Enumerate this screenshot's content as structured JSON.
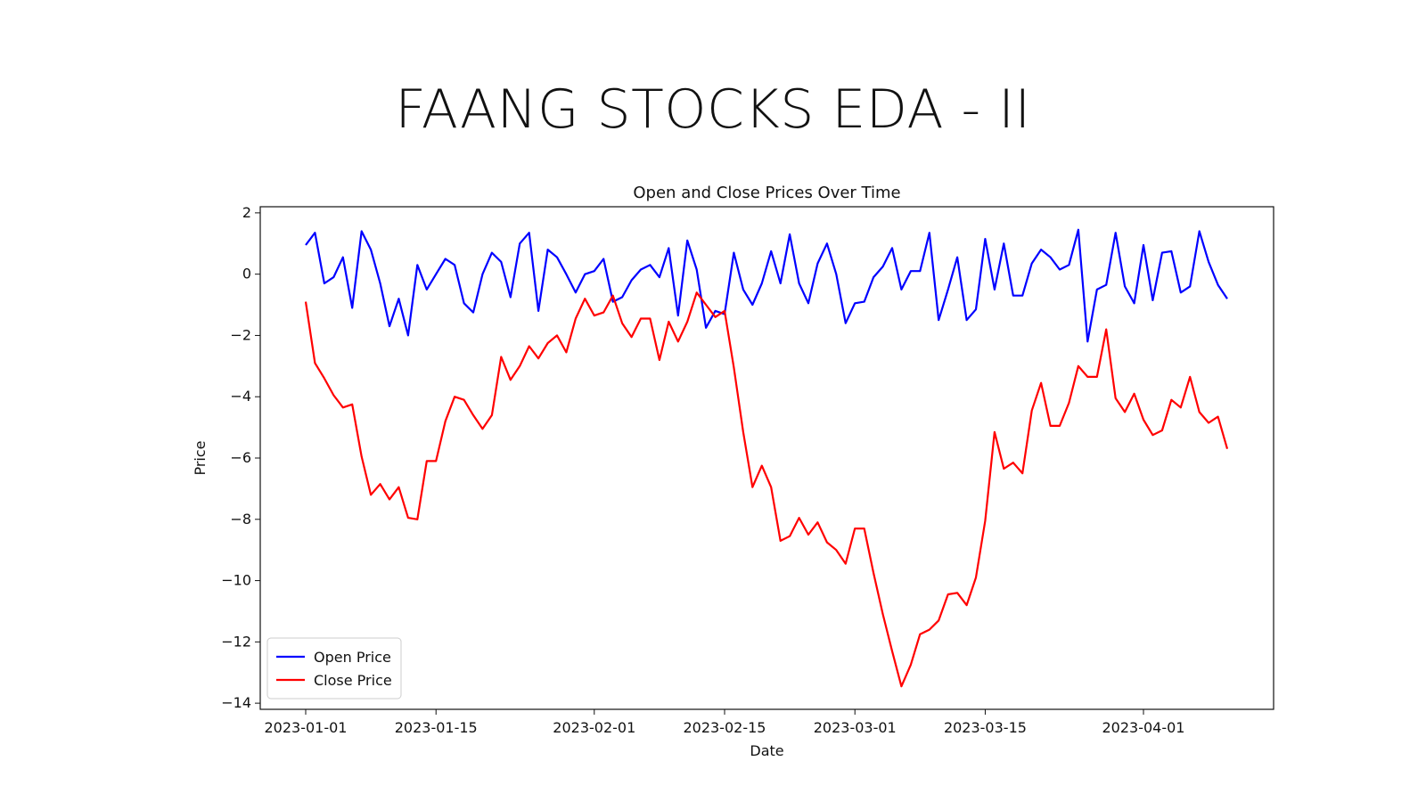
{
  "slide": {
    "title": "FAANG STOCKS EDA - II"
  },
  "chart_data": {
    "type": "line",
    "title": "Open and Close Prices Over Time",
    "xlabel": "Date",
    "ylabel": "Price",
    "x_start": "2023-01-01",
    "x_end": "2023-04-10",
    "xticks": [
      "2023-01-01",
      "2023-01-15",
      "2023-02-01",
      "2023-02-15",
      "2023-03-01",
      "2023-03-15",
      "2023-04-01"
    ],
    "yticks": [
      2,
      0,
      -2,
      -4,
      -6,
      -8,
      -10,
      -12,
      -14
    ],
    "ylim": [
      -14.2,
      2.2
    ],
    "grid": false,
    "legend_position": "lower-left",
    "series": [
      {
        "name": "Open Price",
        "color": "#0000ff",
        "values": [
          0.95,
          1.35,
          -0.3,
          -0.1,
          0.55,
          -1.1,
          1.4,
          0.8,
          -0.3,
          -1.7,
          -0.8,
          -2.0,
          0.3,
          -0.5,
          0.0,
          0.5,
          0.3,
          -0.95,
          -1.25,
          0.0,
          0.7,
          0.4,
          -0.75,
          1.0,
          1.35,
          -1.2,
          0.8,
          0.55,
          0.0,
          -0.6,
          0.0,
          0.1,
          0.5,
          -0.9,
          -0.75,
          -0.2,
          0.15,
          0.3,
          -0.1,
          0.85,
          -1.35,
          1.1,
          0.15,
          -1.75,
          -1.2,
          -1.3,
          0.7,
          -0.5,
          -1.0,
          -0.3,
          0.75,
          -0.3,
          1.3,
          -0.3,
          -0.95,
          0.35,
          1.0,
          0.0,
          -1.6,
          -0.95,
          -0.9,
          -0.1,
          0.25,
          0.85,
          -0.5,
          0.1,
          0.1,
          1.35,
          -1.5,
          -0.5,
          0.55,
          -1.5,
          -1.15,
          1.15,
          -0.5,
          1.0,
          -0.7,
          -0.7,
          0.35,
          0.8,
          0.55,
          0.15,
          0.3,
          1.45,
          -2.2,
          -0.5,
          -0.35,
          1.35,
          -0.4,
          -0.95,
          0.95,
          -0.85,
          0.7,
          0.75,
          -0.6,
          -0.4,
          1.4,
          0.4,
          -0.35,
          -0.8
        ]
      },
      {
        "name": "Close Price",
        "color": "#ff0000",
        "values": [
          -0.9,
          -2.9,
          -3.4,
          -3.95,
          -4.35,
          -4.25,
          -5.95,
          -7.2,
          -6.85,
          -7.35,
          -6.95,
          -7.95,
          -8.0,
          -6.1,
          -6.1,
          -4.8,
          -4.0,
          -4.1,
          -4.6,
          -5.05,
          -4.6,
          -2.7,
          -3.45,
          -3.0,
          -2.35,
          -2.75,
          -2.25,
          -2.0,
          -2.55,
          -1.45,
          -0.8,
          -1.35,
          -1.25,
          -0.7,
          -1.6,
          -2.05,
          -1.45,
          -1.45,
          -2.8,
          -1.55,
          -2.2,
          -1.55,
          -0.6,
          -1.0,
          -1.4,
          -1.2,
          -3.05,
          -5.15,
          -6.95,
          -6.25,
          -6.95,
          -8.7,
          -8.55,
          -7.95,
          -8.5,
          -8.1,
          -8.75,
          -9.0,
          -9.45,
          -8.3,
          -8.3,
          -9.75,
          -11.1,
          -12.3,
          -13.45,
          -12.75,
          -11.75,
          -11.6,
          -11.3,
          -10.45,
          -10.4,
          -10.8,
          -9.9,
          -8.05,
          -5.15,
          -6.35,
          -6.15,
          -6.5,
          -4.45,
          -3.55,
          -4.95,
          -4.95,
          -4.2,
          -3.0,
          -3.35,
          -3.35,
          -1.8,
          -4.05,
          -4.5,
          -3.9,
          -4.75,
          -5.25,
          -5.1,
          -4.1,
          -4.35,
          -3.35,
          -4.5,
          -4.85,
          -4.65,
          -5.7
        ]
      }
    ]
  }
}
